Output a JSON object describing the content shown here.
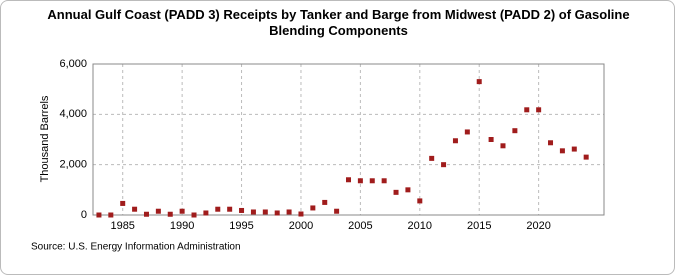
{
  "chart_data": {
    "type": "scatter",
    "title": "Annual Gulf Coast (PADD 3) Receipts by Tanker and Barge from Midwest (PADD 2) of Gasoline Blending Components",
    "y_label": "Thousand Barrels",
    "source": "Source: U.S. Energy Information Administration",
    "color": "#a01c1c",
    "x": [
      1983,
      1984,
      1985,
      1986,
      1987,
      1988,
      1989,
      1990,
      1991,
      1992,
      1993,
      1994,
      1995,
      1996,
      1997,
      1998,
      1999,
      2000,
      2001,
      2002,
      2003,
      2004,
      2005,
      2006,
      2007,
      2008,
      2009,
      2010,
      2011,
      2012,
      2013,
      2014,
      2015,
      2016,
      2017,
      2018,
      2019,
      2020,
      2021,
      2022,
      2023,
      2024
    ],
    "values": [
      0,
      0,
      460,
      230,
      30,
      150,
      30,
      150,
      0,
      80,
      230,
      230,
      180,
      120,
      120,
      80,
      120,
      40,
      280,
      500,
      150,
      1400,
      1360,
      1360,
      1360,
      900,
      1000,
      560,
      2250,
      2000,
      2950,
      3300,
      5300,
      3000,
      2750,
      3350,
      4180,
      4180,
      2870,
      2550,
      2620,
      2300
    ],
    "xlim": [
      1982.5,
      2025.5
    ],
    "ylim": [
      0,
      6000
    ],
    "xticks": [
      1985,
      1990,
      1995,
      2000,
      2005,
      2010,
      2015,
      2020
    ],
    "yticks": [
      0,
      {
        "value": 2000,
        "label": "2,000"
      },
      {
        "value": 4000,
        "label": "4,000"
      },
      {
        "value": 6000,
        "label": "6,000"
      }
    ],
    "grid": true
  }
}
